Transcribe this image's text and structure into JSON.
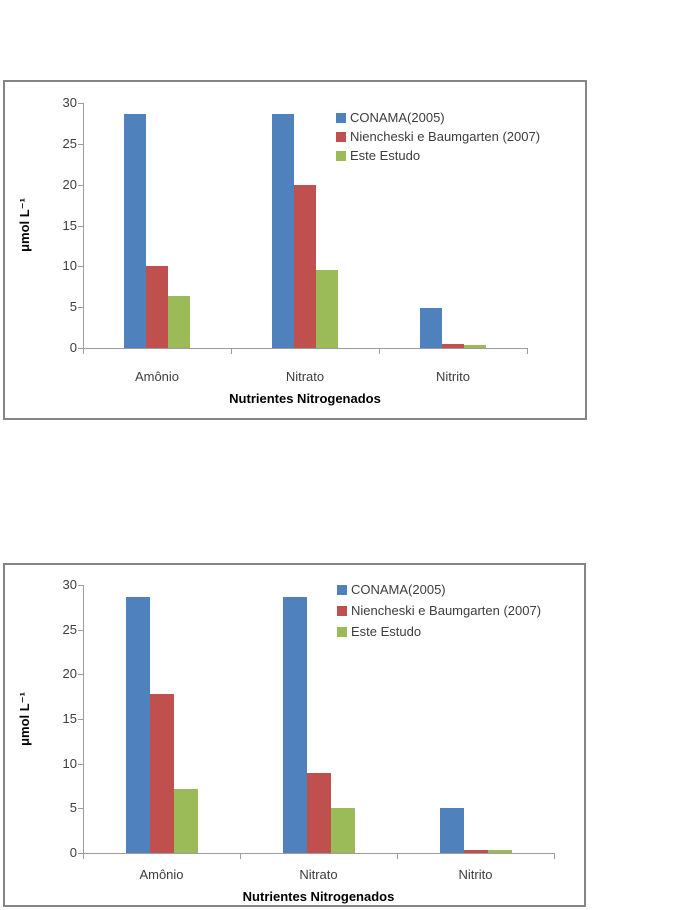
{
  "page": {
    "background": "#ffffff"
  },
  "colors": {
    "series_blue": "#4F81BD",
    "series_red": "#C0504D",
    "series_green": "#9BBB59",
    "axis_gray": "#9c9c9c",
    "border_gray": "#858585",
    "text_gray": "#3d3d3d"
  },
  "chart_data": [
    {
      "type": "bar",
      "title": "",
      "categories": [
        "Amônio",
        "Nitrato",
        "Nitrito"
      ],
      "series": [
        {
          "name": "CONAMA(2005)",
          "color": "#4F81BD",
          "values": [
            28.7,
            28.7,
            4.9
          ]
        },
        {
          "name": "Niencheski e Baumgarten (2007)",
          "color": "#C0504D",
          "values": [
            10.0,
            19.9,
            0.5
          ]
        },
        {
          "name": "Este Estudo",
          "color": "#9BBB59",
          "values": [
            6.4,
            9.5,
            0.4
          ]
        }
      ],
      "xlabel": "Nutrientes Nitrogenados",
      "ylabel": "μmol L⁻¹",
      "ylim": [
        0,
        30
      ],
      "yticks": [
        0,
        5,
        10,
        15,
        20,
        25,
        30
      ],
      "grid": false,
      "legend_position": "top-right-inside"
    },
    {
      "type": "bar",
      "title": "",
      "categories": [
        "Amônio",
        "Nitrato",
        "Nitrito"
      ],
      "series": [
        {
          "name": "CONAMA(2005)",
          "color": "#4F81BD",
          "values": [
            28.7,
            28.7,
            5.0
          ]
        },
        {
          "name": "Niencheski e Baumgarten (2007)",
          "color": "#C0504D",
          "values": [
            17.8,
            9.0,
            0.3
          ]
        },
        {
          "name": "Este Estudo",
          "color": "#9BBB59",
          "values": [
            7.2,
            5.0,
            0.3
          ]
        }
      ],
      "xlabel": "Nutrientes Nitrogenados",
      "ylabel": "μmol L⁻¹",
      "ylim": [
        0,
        30
      ],
      "yticks": [
        0,
        5,
        10,
        15,
        20,
        25,
        30
      ],
      "grid": false,
      "legend_position": "top-right-inside"
    }
  ]
}
